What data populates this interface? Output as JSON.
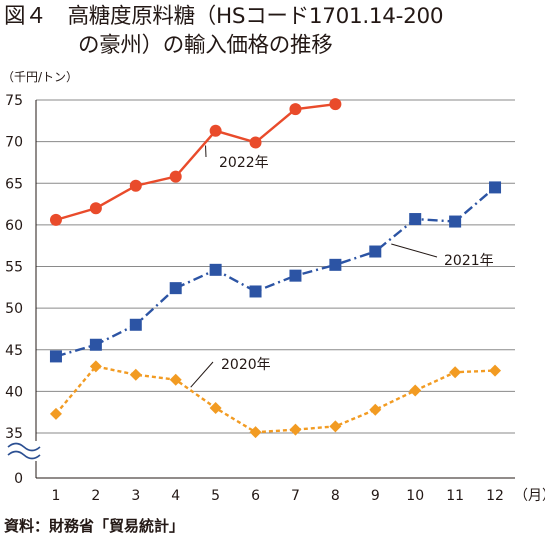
{
  "figure": {
    "title_line1": "図４　高糖度原料糖（HSコード1701.14-200",
    "title_line2": "の豪州）の輸入価格の推移",
    "source": "資料：財務省「貿易統計」"
  },
  "chart_data": {
    "type": "line",
    "ylabel": "（千円/トン）",
    "xlabel": "（月）",
    "categories": [
      "1",
      "2",
      "3",
      "4",
      "5",
      "6",
      "7",
      "8",
      "9",
      "10",
      "11",
      "12"
    ],
    "yticks": [
      "0",
      "35",
      "40",
      "45",
      "50",
      "55",
      "60",
      "65",
      "70",
      "75"
    ],
    "ylim": [
      35,
      75
    ],
    "axis_break": true,
    "grid": true,
    "series": [
      {
        "name": "2022年",
        "color": "#e94b2b",
        "marker": "circle",
        "dash": "solid",
        "values": [
          60.6,
          62.0,
          64.7,
          65.8,
          71.3,
          69.9,
          73.9,
          74.5,
          null,
          null,
          null,
          null
        ]
      },
      {
        "name": "2021年",
        "color": "#2c54a4",
        "marker": "square",
        "dash": "dashdot",
        "values": [
          44.2,
          45.6,
          48.0,
          52.4,
          54.6,
          52.0,
          53.9,
          55.2,
          56.8,
          60.7,
          60.4,
          64.5
        ]
      },
      {
        "name": "2020年",
        "color": "#f29b22",
        "marker": "diamond",
        "dash": "dotted",
        "values": [
          37.3,
          43.0,
          42.0,
          41.4,
          38.0,
          35.1,
          35.4,
          35.8,
          37.8,
          40.1,
          42.3,
          42.5
        ]
      }
    ]
  }
}
